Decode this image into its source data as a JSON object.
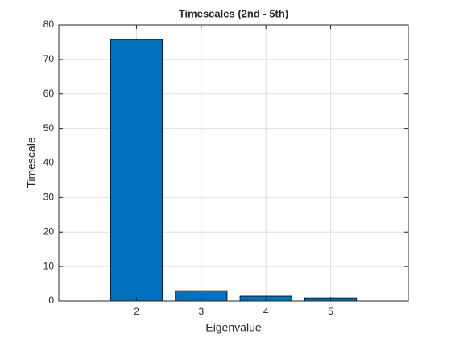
{
  "chart_data": {
    "type": "bar",
    "title": "Timescales (2nd - 5th)",
    "x_label": "Eigenvalue",
    "y_label": "Timescale",
    "x": [
      2,
      3,
      4,
      5
    ],
    "values": [
      75.8,
      3.0,
      1.4,
      0.9
    ],
    "color": "#0072bd",
    "xlim": [
      0.8,
      6.2
    ],
    "xticks": [
      2,
      3,
      4,
      5
    ],
    "ylim": [
      0,
      80
    ],
    "yticks": [
      0,
      10,
      20,
      30,
      40,
      50,
      60,
      70,
      80
    ],
    "grid": true
  }
}
